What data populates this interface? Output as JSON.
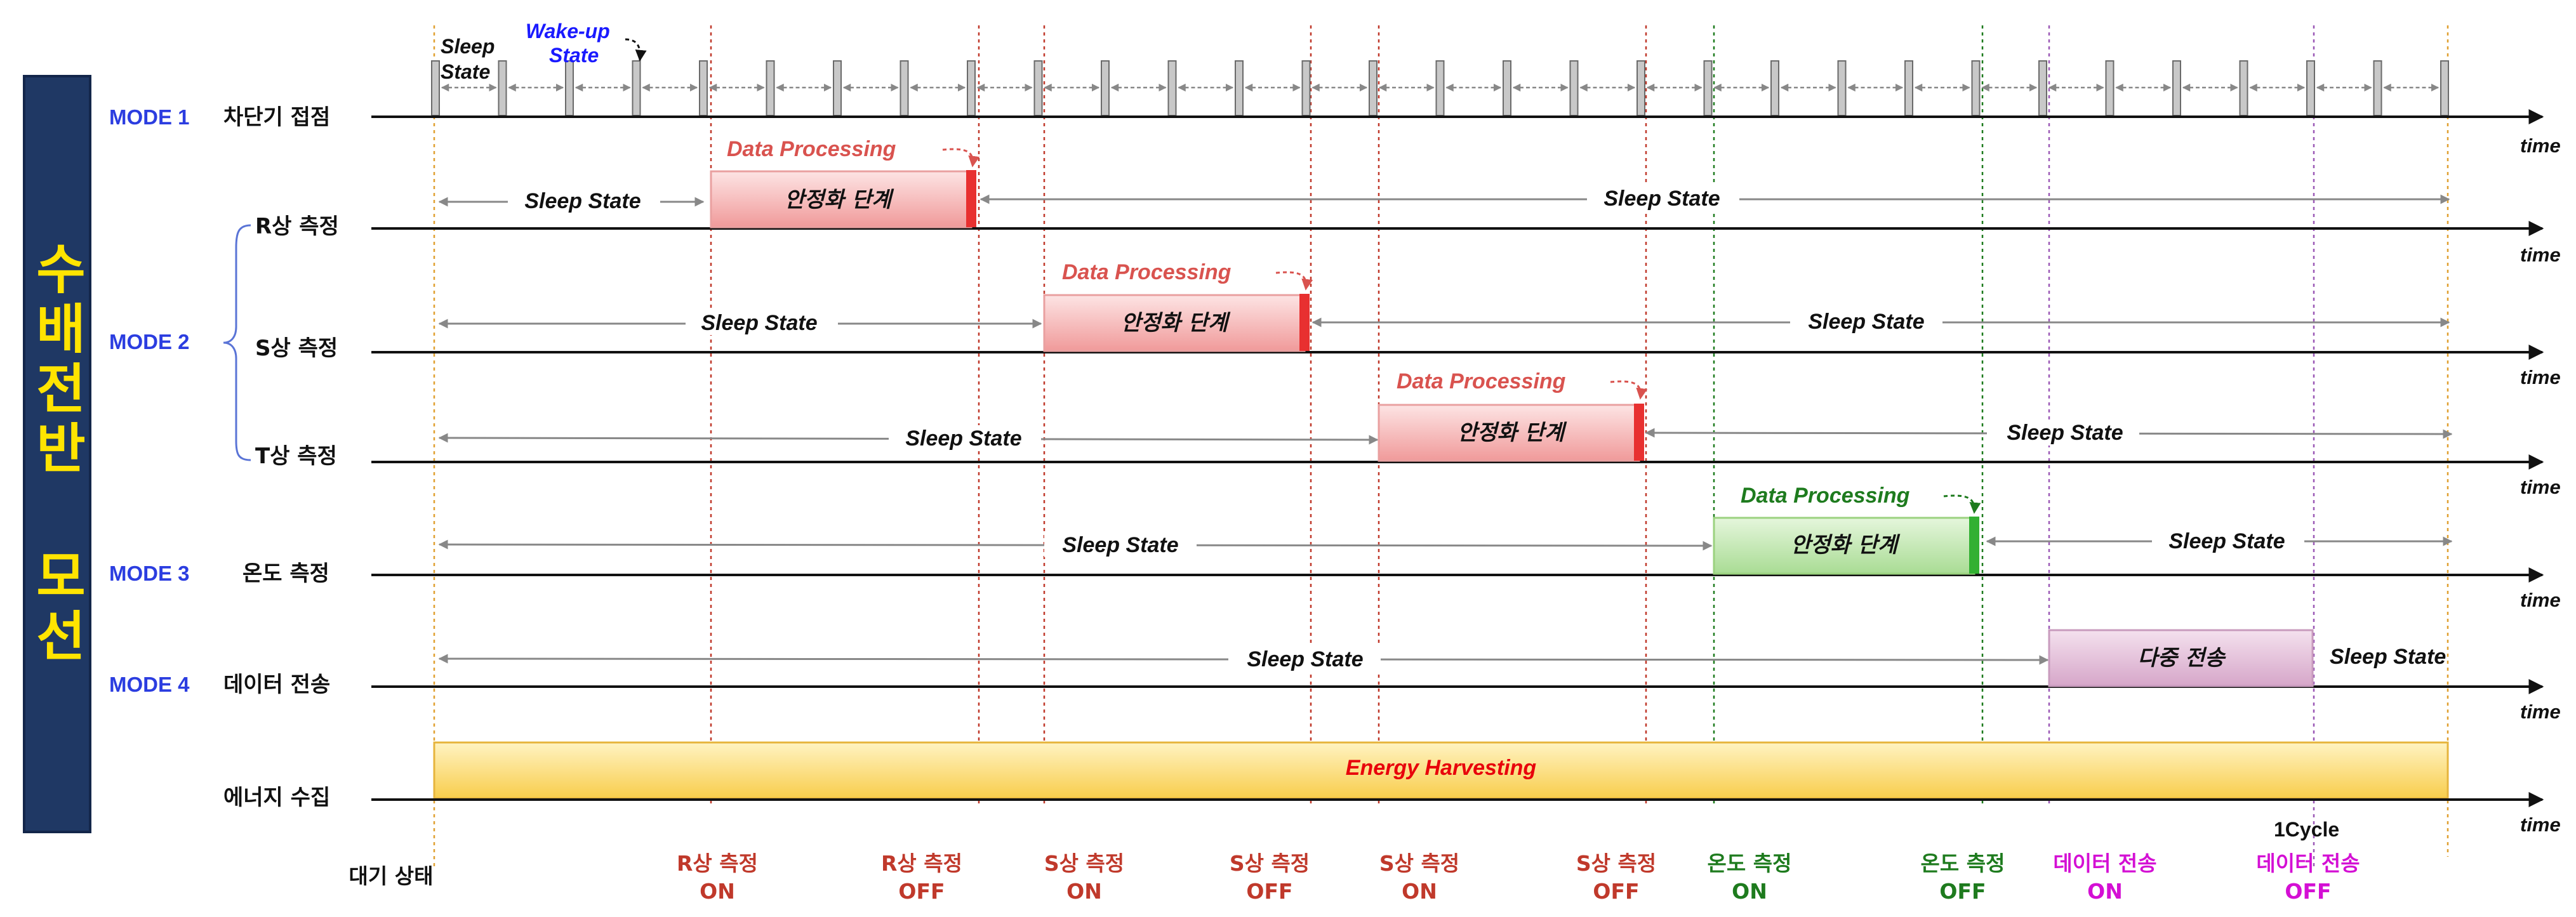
{
  "title": "수배전반 모선",
  "time_label": "time",
  "sleep_label": "Sleep State",
  "stabilize_label": "안정화 단계",
  "data_processing_label": "Data Processing",
  "multi_transmit_label": "다중 전송",
  "energy_label": "Energy Harvesting",
  "cycle_label": "1Cycle",
  "top_sleep_label": [
    "Sleep",
    "State"
  ],
  "wake_label": [
    "Wake-up",
    "State"
  ],
  "modes": {
    "mode1": "MODE 1",
    "mode2": "MODE 2",
    "mode3": "MODE 3",
    "mode4": "MODE 4"
  },
  "rows": [
    {
      "id": "breaker",
      "label": "차단기 접점"
    },
    {
      "id": "r",
      "label": "R상 측정"
    },
    {
      "id": "s",
      "label": "S상 측정"
    },
    {
      "id": "t",
      "label": "T상 측정"
    },
    {
      "id": "temp",
      "label": "온도 측정"
    },
    {
      "id": "data",
      "label": "데이터 전송"
    },
    {
      "id": "energy",
      "label": "에너지 수집"
    }
  ],
  "events": [
    {
      "id": "standby",
      "line1": "대기 상태",
      "line2": "",
      "color": "#111111"
    },
    {
      "id": "r-on",
      "line1": "R상 측정",
      "line2": "ON",
      "color": "#c0392b"
    },
    {
      "id": "r-off",
      "line1": "R상 측정",
      "line2": "OFF",
      "color": "#c0392b"
    },
    {
      "id": "s-on",
      "line1": "S상 측정",
      "line2": "ON",
      "color": "#c0392b"
    },
    {
      "id": "s-off",
      "line1": "S상 측정",
      "line2": "OFF",
      "color": "#c0392b"
    },
    {
      "id": "s-on-2",
      "line1": "S상 측정",
      "line2": "ON",
      "color": "#c0392b"
    },
    {
      "id": "s-off-2",
      "line1": "S상 측정",
      "line2": "OFF",
      "color": "#c0392b"
    },
    {
      "id": "temp-on",
      "line1": "온도 측정",
      "line2": "ON",
      "color": "#1e7b1e"
    },
    {
      "id": "temp-off",
      "line1": "온도 측정",
      "line2": "OFF",
      "color": "#1e7b1e"
    },
    {
      "id": "data-on",
      "line1": "데이터 전송",
      "line2": "ON",
      "color": "#d40fd4"
    },
    {
      "id": "data-off",
      "line1": "데이터 전송",
      "line2": "OFF",
      "color": "#d40fd4"
    }
  ],
  "colors": {
    "stabilize_red_fill": "#f4a8a8",
    "stabilize_red_edge": "#e84444",
    "stabilize_green_fill": "#b9e3a8",
    "stabilize_green_edge": "#38b538",
    "transmit_fill": "#ddb4d2",
    "energy_fill": "#fbd978",
    "dp_red": "#d9534f",
    "dp_green": "#1e7b1e",
    "axis": "#111111",
    "sleep_arrow": "#888888"
  }
}
